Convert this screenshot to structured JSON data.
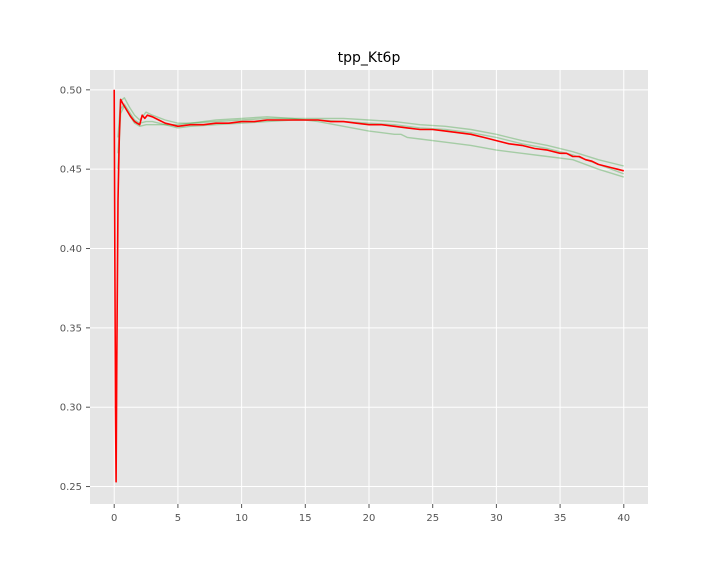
{
  "chart_data": {
    "type": "line",
    "title": "tpp_Kt6p",
    "xlabel": "",
    "ylabel": "",
    "xlim": [
      -1.9,
      41.9
    ],
    "ylim": [
      0.239,
      0.5125
    ],
    "x_ticks": [
      0,
      5,
      10,
      15,
      20,
      25,
      30,
      35,
      40
    ],
    "x_tick_labels": [
      "0",
      "5",
      "10",
      "15",
      "20",
      "25",
      "30",
      "35",
      "40"
    ],
    "y_ticks": [
      0.25,
      0.3,
      0.35,
      0.4,
      0.45,
      0.5
    ],
    "y_tick_labels": [
      "0.25",
      "0.30",
      "0.35",
      "0.40",
      "0.45",
      "0.50"
    ],
    "grid": true,
    "background_color": "#e5e5e5",
    "grid_color": "#ffffff",
    "series": [
      {
        "color": "#ff0000",
        "role": "mean",
        "x": [
          0,
          0.05,
          0.1,
          0.15,
          0.2,
          0.3,
          0.4,
          0.5,
          0.7,
          1.0,
          1.3,
          1.6,
          1.8,
          2.0,
          2.2,
          2.4,
          2.6,
          3.0,
          3.5,
          4.0,
          4.5,
          5.0,
          6,
          7,
          8,
          9,
          10,
          11,
          12,
          13,
          14,
          15,
          16,
          17,
          18,
          19,
          20,
          21,
          22,
          23,
          24,
          25,
          26,
          27,
          28,
          29,
          30,
          31,
          32,
          33,
          34,
          35,
          35.5,
          36,
          36.5,
          37,
          37.5,
          38,
          38.5,
          39,
          39.5,
          40
        ],
        "y": [
          0.5,
          0.4,
          0.3,
          0.253,
          0.33,
          0.43,
          0.47,
          0.494,
          0.491,
          0.487,
          0.483,
          0.48,
          0.479,
          0.478,
          0.484,
          0.482,
          0.484,
          0.483,
          0.481,
          0.479,
          0.478,
          0.477,
          0.478,
          0.478,
          0.479,
          0.479,
          0.48,
          0.48,
          0.481,
          0.481,
          0.481,
          0.481,
          0.481,
          0.48,
          0.48,
          0.479,
          0.478,
          0.478,
          0.477,
          0.476,
          0.475,
          0.475,
          0.474,
          0.473,
          0.472,
          0.47,
          0.468,
          0.466,
          0.465,
          0.463,
          0.462,
          0.46,
          0.46,
          0.458,
          0.458,
          0.456,
          0.455,
          0.453,
          0.452,
          0.451,
          0.45,
          0.449
        ]
      },
      {
        "color": "#2e9e2e",
        "role": "run",
        "x": [
          0.3,
          0.5,
          0.8,
          1.2,
          1.6,
          2.0,
          2.5,
          3,
          4,
          5,
          6,
          8,
          10,
          12,
          14,
          16,
          18,
          20,
          22,
          24,
          26,
          28,
          30,
          32,
          34,
          36,
          38,
          40
        ],
        "y": [
          0.47,
          0.493,
          0.495,
          0.489,
          0.484,
          0.481,
          0.486,
          0.484,
          0.481,
          0.479,
          0.479,
          0.48,
          0.481,
          0.482,
          0.482,
          0.482,
          0.482,
          0.481,
          0.48,
          0.478,
          0.477,
          0.475,
          0.472,
          0.468,
          0.465,
          0.461,
          0.456,
          0.452
        ]
      },
      {
        "color": "#2e9e2e",
        "role": "run",
        "x": [
          0.3,
          0.5,
          0.8,
          1.2,
          1.6,
          2.0,
          2.5,
          3,
          4,
          5,
          6,
          8,
          10,
          12,
          14,
          16,
          18,
          20,
          22,
          24,
          26,
          28,
          30,
          32,
          34,
          36,
          38,
          40
        ],
        "y": [
          0.46,
          0.488,
          0.491,
          0.486,
          0.481,
          0.479,
          0.48,
          0.48,
          0.478,
          0.476,
          0.477,
          0.478,
          0.479,
          0.48,
          0.481,
          0.481,
          0.48,
          0.479,
          0.478,
          0.476,
          0.475,
          0.473,
          0.47,
          0.466,
          0.463,
          0.459,
          0.453,
          0.447
        ]
      },
      {
        "color": "#2e9e2e",
        "role": "run",
        "x": [
          0.3,
          0.5,
          0.8,
          1.2,
          1.6,
          2.0,
          2.5,
          3,
          4,
          5,
          6,
          8,
          10,
          12,
          14,
          16,
          18,
          20,
          22,
          22.5,
          23,
          24,
          26,
          28,
          30,
          32,
          34,
          36,
          38,
          40
        ],
        "y": [
          0.45,
          0.485,
          0.49,
          0.484,
          0.479,
          0.477,
          0.478,
          0.478,
          0.478,
          0.478,
          0.479,
          0.481,
          0.482,
          0.483,
          0.482,
          0.48,
          0.477,
          0.474,
          0.472,
          0.472,
          0.47,
          0.469,
          0.467,
          0.465,
          0.462,
          0.46,
          0.458,
          0.456,
          0.45,
          0.445
        ]
      }
    ]
  }
}
